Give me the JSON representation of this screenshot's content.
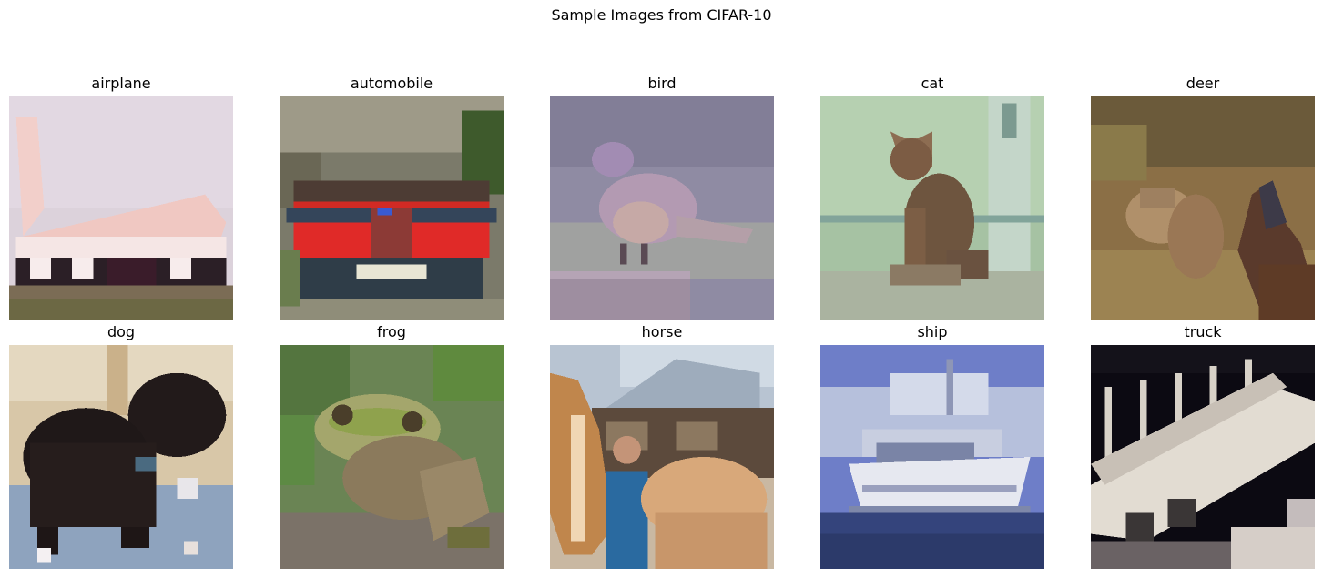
{
  "figure": {
    "title": "Sample Images from CIFAR-10"
  },
  "panels": [
    {
      "label": "airplane"
    },
    {
      "label": "automobile"
    },
    {
      "label": "bird"
    },
    {
      "label": "cat"
    },
    {
      "label": "deer"
    },
    {
      "label": "dog"
    },
    {
      "label": "frog"
    },
    {
      "label": "horse"
    },
    {
      "label": "ship"
    },
    {
      "label": "truck"
    }
  ]
}
